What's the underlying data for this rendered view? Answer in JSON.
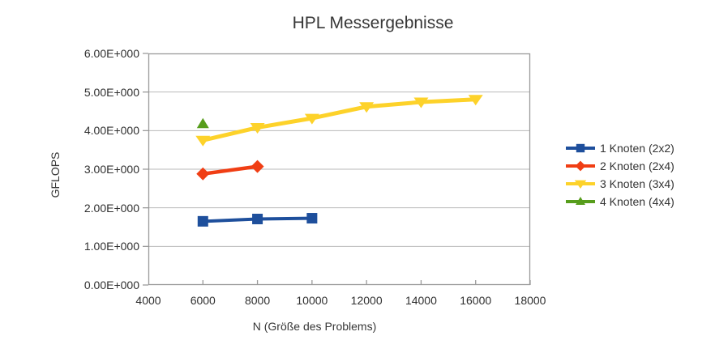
{
  "chart_data": {
    "type": "line",
    "title": "HPL Messergebnisse",
    "xlabel": "N (Größe des Problems)",
    "ylabel": "GFLOPS",
    "xlim": [
      4000,
      18000
    ],
    "ylim": [
      0,
      6
    ],
    "x_ticks": [
      4000,
      6000,
      8000,
      10000,
      12000,
      14000,
      16000,
      18000
    ],
    "y_ticks": [
      0,
      1,
      2,
      3,
      4,
      5,
      6
    ],
    "y_tick_labels": [
      "0.00E+000",
      "1.00E+000",
      "2.00E+000",
      "3.00E+000",
      "4.00E+000",
      "5.00E+000",
      "6.00E+000"
    ],
    "grid": "horizontal-only",
    "legend_position": "right",
    "text_color": "#373737",
    "grid_color": "#b9b9b9",
    "axis_color": "#9a9a9a",
    "series": [
      {
        "name": "1 Knoten (2x2)",
        "marker": "square",
        "color": "#1e4f9c",
        "x": [
          6000,
          8000,
          10000
        ],
        "values": [
          1.65,
          1.71,
          1.73
        ]
      },
      {
        "name": "2 Knoten (2x4)",
        "marker": "diamond",
        "color": "#f03e14",
        "x": [
          6000,
          8000
        ],
        "values": [
          2.88,
          3.07
        ]
      },
      {
        "name": "3 Knoten (3x4)",
        "marker": "triangle-down",
        "color": "#fdd22a",
        "x": [
          6000,
          8000,
          10000,
          12000,
          14000,
          16000
        ],
        "values": [
          3.75,
          4.08,
          4.32,
          4.62,
          4.74,
          4.81
        ]
      },
      {
        "name": "4 Knoten (4x4)",
        "marker": "triangle-up",
        "color": "#579d1c",
        "x": [
          6000
        ],
        "values": [
          4.17
        ]
      }
    ]
  }
}
